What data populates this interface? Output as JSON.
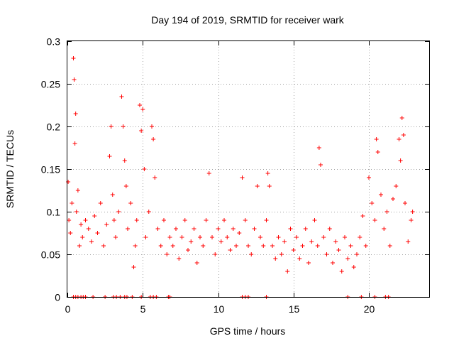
{
  "chart_data": {
    "type": "scatter",
    "title": "Day 194 of 2019, SRMTID for receiver wark",
    "xlabel": "GPS time / hours",
    "ylabel": "SRMTID / TECUs",
    "xlim": [
      0,
      24
    ],
    "ylim": [
      0,
      0.3
    ],
    "xticks": [
      0,
      5,
      10,
      15,
      20
    ],
    "yticks": [
      0,
      0.05,
      0.1,
      0.15,
      0.2,
      0.25,
      0.3
    ],
    "xtick_labels": [
      "0",
      "5",
      "10",
      "15",
      "20"
    ],
    "ytick_labels": [
      "0",
      "0.05",
      "0.1",
      "0.15",
      "0.2",
      "0.25",
      "0.3"
    ],
    "grid": true,
    "marker": "+",
    "color": "#ff0000",
    "series": [
      {
        "name": "SRMTID",
        "x": [
          0.05,
          0.1,
          0.2,
          0.3,
          0.4,
          0.45,
          0.5,
          0.55,
          0.6,
          0.7,
          0.8,
          0.9,
          1.0,
          1.2,
          1.4,
          1.6,
          1.8,
          2.0,
          2.2,
          2.4,
          2.6,
          2.8,
          2.9,
          3.0,
          3.1,
          3.2,
          3.4,
          3.6,
          3.7,
          3.8,
          3.9,
          4.0,
          4.2,
          4.4,
          4.5,
          4.6,
          4.8,
          4.9,
          5.0,
          5.1,
          5.2,
          5.4,
          5.6,
          5.7,
          5.8,
          6.0,
          6.2,
          6.4,
          6.6,
          6.8,
          7.0,
          7.2,
          7.4,
          7.6,
          7.8,
          8.0,
          8.2,
          8.4,
          8.6,
          8.8,
          9.0,
          9.2,
          9.4,
          9.6,
          9.8,
          10.0,
          10.2,
          10.4,
          10.6,
          10.8,
          11.0,
          11.2,
          11.4,
          11.6,
          11.8,
          12.0,
          12.2,
          12.4,
          12.6,
          12.8,
          13.0,
          13.2,
          13.3,
          13.4,
          13.6,
          13.8,
          14.0,
          14.2,
          14.4,
          14.6,
          14.8,
          15.0,
          15.2,
          15.4,
          15.6,
          15.8,
          16.0,
          16.2,
          16.4,
          16.6,
          16.7,
          16.8,
          17.0,
          17.2,
          17.4,
          17.6,
          17.8,
          18.0,
          18.2,
          18.4,
          18.6,
          18.8,
          19.0,
          19.2,
          19.4,
          19.6,
          19.8,
          20.0,
          20.2,
          20.4,
          20.5,
          20.6,
          20.8,
          21.0,
          21.2,
          21.4,
          21.6,
          21.8,
          22.0,
          22.1,
          22.2,
          22.3,
          22.4,
          22.6,
          22.8,
          22.9
        ],
        "y": [
          0.135,
          0.09,
          0.075,
          0.11,
          0.28,
          0.255,
          0.18,
          0.215,
          0.1,
          0.125,
          0.06,
          0.085,
          0.07,
          0.09,
          0.08,
          0.065,
          0.095,
          0.075,
          0.11,
          0.06,
          0.085,
          0.165,
          0.2,
          0.12,
          0.09,
          0.07,
          0.1,
          0.235,
          0.2,
          0.16,
          0.13,
          0.08,
          0.11,
          0.035,
          0.06,
          0.09,
          0.225,
          0.195,
          0.22,
          0.15,
          0.07,
          0.1,
          0.2,
          0.185,
          0.14,
          0.08,
          0.06,
          0.09,
          0.05,
          0.07,
          0.06,
          0.08,
          0.045,
          0.07,
          0.09,
          0.055,
          0.065,
          0.08,
          0.04,
          0.07,
          0.06,
          0.09,
          0.145,
          0.07,
          0.05,
          0.08,
          0.065,
          0.09,
          0.07,
          0.055,
          0.08,
          0.06,
          0.075,
          0.14,
          0.09,
          0.06,
          0.05,
          0.08,
          0.13,
          0.07,
          0.06,
          0.09,
          0.145,
          0.13,
          0.06,
          0.045,
          0.07,
          0.05,
          0.065,
          0.03,
          0.08,
          0.055,
          0.07,
          0.045,
          0.06,
          0.08,
          0.04,
          0.065,
          0.09,
          0.06,
          0.175,
          0.155,
          0.07,
          0.05,
          0.08,
          0.04,
          0.065,
          0.055,
          0.03,
          0.07,
          0.045,
          0.06,
          0.035,
          0.05,
          0.07,
          0.095,
          0.06,
          0.14,
          0.11,
          0.09,
          0.185,
          0.17,
          0.12,
          0.08,
          0.1,
          0.06,
          0.115,
          0.13,
          0.185,
          0.16,
          0.21,
          0.19,
          0.11,
          0.065,
          0.09,
          0.1
        ],
        "zero_x": [
          0.4,
          0.55,
          0.7,
          0.9,
          1.05,
          1.2,
          1.7,
          2.5,
          3.05,
          3.25,
          3.5,
          3.8,
          3.95,
          4.3,
          4.9,
          5.5,
          5.7,
          5.9,
          6.7,
          6.8,
          11.6,
          11.8,
          12.0,
          13.2,
          18.6,
          19.5,
          20.4,
          21.1,
          21.3
        ]
      }
    ]
  }
}
